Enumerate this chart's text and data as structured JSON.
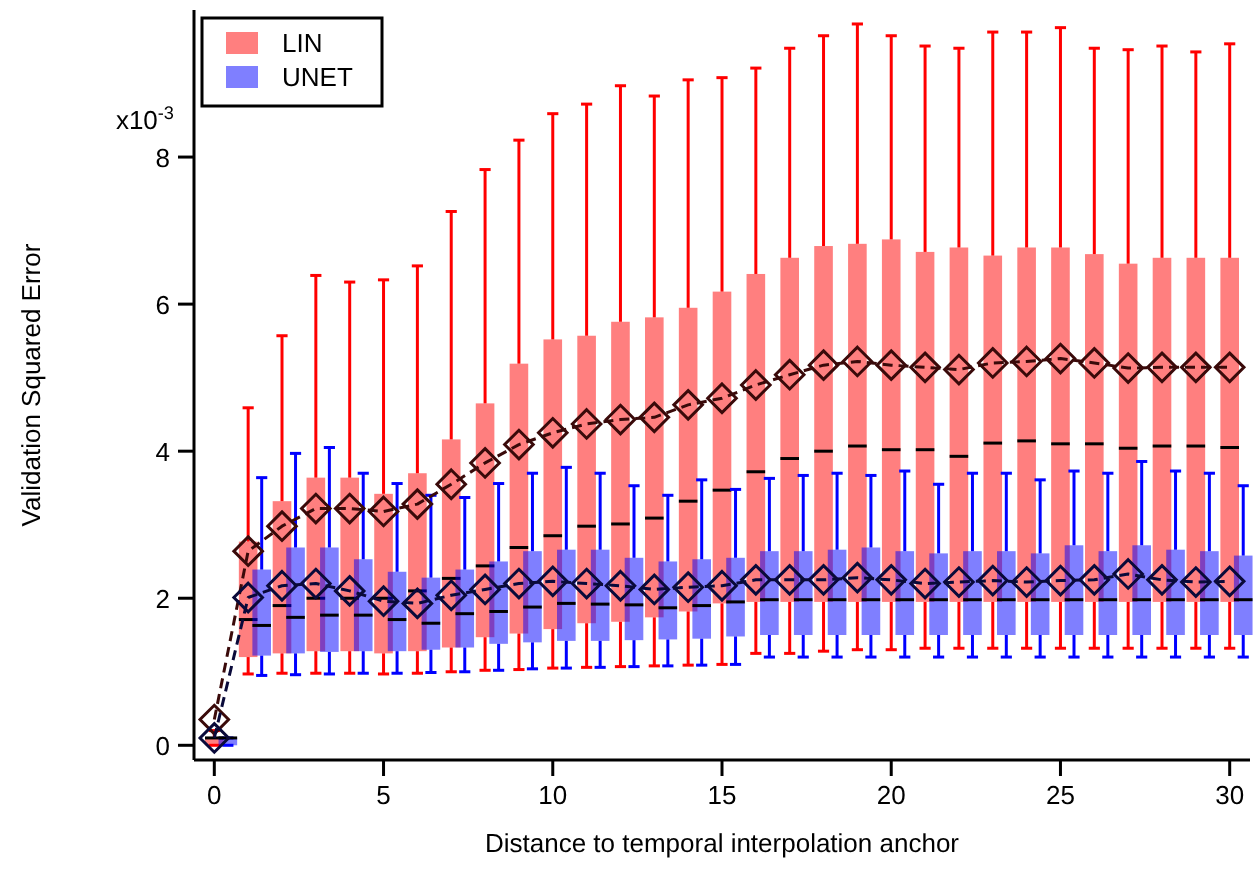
{
  "chart_data": {
    "type": "box",
    "xlabel": "Distance to temporal interpolation anchor",
    "ylabel": "Validation Squared Error",
    "xlim": [
      -0.6,
      30.6
    ],
    "xticks": [
      0,
      5,
      10,
      15,
      20,
      25,
      30
    ],
    "ylim": [
      -0.2,
      10.0
    ],
    "yticks": [
      0,
      2,
      4,
      6,
      8
    ],
    "annotations": [
      "x10$^{-3}$"
    ],
    "grid": false,
    "legend": "top left",
    "series": [
      {
        "name": "LIN",
        "color": "#ff0000",
        "x": [
          0,
          1,
          2,
          3,
          4,
          5,
          6,
          7,
          8,
          9,
          10,
          11,
          12,
          13,
          14,
          15,
          16,
          17,
          18,
          19,
          20,
          21,
          22,
          23,
          24,
          25,
          26,
          27,
          28,
          29,
          30
        ],
        "boxes": [
          {
            "low": 0,
            "q1": 0,
            "median": 0.1,
            "q3": 0.1,
            "high": 0.2
          },
          {
            "low": 0.97,
            "q1": 1.2,
            "median": 1.71,
            "q3": 2.77,
            "high": 4.59
          },
          {
            "low": 0.98,
            "q1": 1.25,
            "median": 1.9,
            "q3": 3.32,
            "high": 5.57
          },
          {
            "low": 0.98,
            "q1": 1.28,
            "median": 2.0,
            "q3": 3.64,
            "high": 6.39
          },
          {
            "low": 0.98,
            "q1": 1.28,
            "median": 2.0,
            "q3": 3.64,
            "high": 6.3
          },
          {
            "low": 0.97,
            "q1": 1.25,
            "median": 2.0,
            "q3": 3.42,
            "high": 6.33
          },
          {
            "low": 0.98,
            "q1": 1.28,
            "median": 2.1,
            "q3": 3.7,
            "high": 6.52
          },
          {
            "low": 1.0,
            "q1": 1.33,
            "median": 2.27,
            "q3": 4.16,
            "high": 7.26
          },
          {
            "low": 1.02,
            "q1": 1.47,
            "median": 2.44,
            "q3": 4.65,
            "high": 7.83
          },
          {
            "low": 1.03,
            "q1": 1.52,
            "median": 2.69,
            "q3": 5.19,
            "high": 8.23
          },
          {
            "low": 1.05,
            "q1": 1.58,
            "median": 2.85,
            "q3": 5.52,
            "high": 8.59
          },
          {
            "low": 1.06,
            "q1": 1.66,
            "median": 2.98,
            "q3": 5.57,
            "high": 8.72
          },
          {
            "low": 1.07,
            "q1": 1.68,
            "median": 3.01,
            "q3": 5.76,
            "high": 8.97
          },
          {
            "low": 1.08,
            "q1": 1.74,
            "median": 3.09,
            "q3": 5.82,
            "high": 8.83
          },
          {
            "low": 1.09,
            "q1": 1.82,
            "median": 3.32,
            "q3": 5.95,
            "high": 9.05
          },
          {
            "low": 1.1,
            "q1": 1.93,
            "median": 3.47,
            "q3": 6.17,
            "high": 9.08
          },
          {
            "low": 1.25,
            "q1": 1.95,
            "median": 3.72,
            "q3": 6.41,
            "high": 9.21
          },
          {
            "low": 1.25,
            "q1": 1.95,
            "median": 3.9,
            "q3": 6.63,
            "high": 9.48
          },
          {
            "low": 1.28,
            "q1": 1.95,
            "median": 4.0,
            "q3": 6.79,
            "high": 9.65
          },
          {
            "low": 1.3,
            "q1": 1.95,
            "median": 4.07,
            "q3": 6.82,
            "high": 9.81
          },
          {
            "low": 1.3,
            "q1": 1.95,
            "median": 4.02,
            "q3": 6.88,
            "high": 9.65
          },
          {
            "low": 1.32,
            "q1": 1.95,
            "median": 4.02,
            "q3": 6.71,
            "high": 9.51
          },
          {
            "low": 1.32,
            "q1": 1.95,
            "median": 3.93,
            "q3": 6.77,
            "high": 9.48
          },
          {
            "low": 1.32,
            "q1": 1.95,
            "median": 4.11,
            "q3": 6.66,
            "high": 9.7
          },
          {
            "low": 1.32,
            "q1": 1.95,
            "median": 4.14,
            "q3": 6.77,
            "high": 9.7
          },
          {
            "low": 1.32,
            "q1": 1.95,
            "median": 4.1,
            "q3": 6.77,
            "high": 9.76
          },
          {
            "low": 1.32,
            "q1": 1.95,
            "median": 4.1,
            "q3": 6.68,
            "high": 9.48
          },
          {
            "low": 1.32,
            "q1": 1.95,
            "median": 4.04,
            "q3": 6.55,
            "high": 9.46
          },
          {
            "low": 1.32,
            "q1": 1.95,
            "median": 4.07,
            "q3": 6.63,
            "high": 9.51
          },
          {
            "low": 1.32,
            "q1": 1.95,
            "median": 4.07,
            "q3": 6.63,
            "high": 9.43
          },
          {
            "low": 1.32,
            "q1": 1.95,
            "median": 4.05,
            "q3": 6.63,
            "high": 9.54
          }
        ]
      },
      {
        "name": "UNET",
        "color": "#0000ff",
        "x": [
          0,
          1,
          2,
          3,
          4,
          5,
          6,
          7,
          8,
          9,
          10,
          11,
          12,
          13,
          14,
          15,
          16,
          17,
          18,
          19,
          20,
          21,
          22,
          23,
          24,
          25,
          26,
          27,
          28,
          29,
          30
        ],
        "boxes": [
          {
            "low": 0,
            "q1": 0,
            "median": 0.1,
            "q3": 0.1,
            "high": 0.1
          },
          {
            "low": 0.95,
            "q1": 1.22,
            "median": 1.63,
            "q3": 2.39,
            "high": 3.64
          },
          {
            "low": 0.96,
            "q1": 1.25,
            "median": 1.74,
            "q3": 2.69,
            "high": 3.97
          },
          {
            "low": 0.97,
            "q1": 1.27,
            "median": 1.77,
            "q3": 2.69,
            "high": 4.05
          },
          {
            "low": 0.98,
            "q1": 1.28,
            "median": 1.77,
            "q3": 2.53,
            "high": 3.7
          },
          {
            "low": 0.98,
            "q1": 1.28,
            "median": 1.71,
            "q3": 2.36,
            "high": 3.56
          },
          {
            "low": 0.99,
            "q1": 1.3,
            "median": 1.66,
            "q3": 2.28,
            "high": 3.4
          },
          {
            "low": 1.0,
            "q1": 1.33,
            "median": 1.79,
            "q3": 2.39,
            "high": 3.37
          },
          {
            "low": 1.02,
            "q1": 1.38,
            "median": 1.82,
            "q3": 2.5,
            "high": 3.56
          },
          {
            "low": 1.04,
            "q1": 1.4,
            "median": 1.88,
            "q3": 2.64,
            "high": 3.7
          },
          {
            "low": 1.05,
            "q1": 1.42,
            "median": 1.93,
            "q3": 2.66,
            "high": 3.78
          },
          {
            "low": 1.06,
            "q1": 1.42,
            "median": 1.92,
            "q3": 2.66,
            "high": 3.7
          },
          {
            "low": 1.07,
            "q1": 1.43,
            "median": 1.91,
            "q3": 2.55,
            "high": 3.53
          },
          {
            "low": 1.08,
            "q1": 1.44,
            "median": 1.87,
            "q3": 2.5,
            "high": 3.4
          },
          {
            "low": 1.09,
            "q1": 1.45,
            "median": 1.9,
            "q3": 2.53,
            "high": 3.61
          },
          {
            "low": 1.1,
            "q1": 1.48,
            "median": 1.95,
            "q3": 2.55,
            "high": 3.48
          },
          {
            "low": 1.2,
            "q1": 1.5,
            "median": 1.98,
            "q3": 2.64,
            "high": 3.63
          },
          {
            "low": 1.2,
            "q1": 1.5,
            "median": 1.98,
            "q3": 2.64,
            "high": 3.67
          },
          {
            "low": 1.2,
            "q1": 1.5,
            "median": 1.98,
            "q3": 2.66,
            "high": 3.7
          },
          {
            "low": 1.2,
            "q1": 1.5,
            "median": 1.98,
            "q3": 2.69,
            "high": 3.67
          },
          {
            "low": 1.2,
            "q1": 1.5,
            "median": 1.98,
            "q3": 2.64,
            "high": 3.73
          },
          {
            "low": 1.2,
            "q1": 1.5,
            "median": 1.98,
            "q3": 2.61,
            "high": 3.55
          },
          {
            "low": 1.2,
            "q1": 1.5,
            "median": 1.98,
            "q3": 2.64,
            "high": 3.7
          },
          {
            "low": 1.2,
            "q1": 1.5,
            "median": 1.98,
            "q3": 2.64,
            "high": 3.7
          },
          {
            "low": 1.2,
            "q1": 1.5,
            "median": 1.98,
            "q3": 2.61,
            "high": 3.61
          },
          {
            "low": 1.2,
            "q1": 1.5,
            "median": 1.98,
            "q3": 2.72,
            "high": 3.73
          },
          {
            "low": 1.2,
            "q1": 1.5,
            "median": 1.98,
            "q3": 2.64,
            "high": 3.7
          },
          {
            "low": 1.2,
            "q1": 1.5,
            "median": 1.98,
            "q3": 2.72,
            "high": 3.86
          },
          {
            "low": 1.2,
            "q1": 1.5,
            "median": 1.98,
            "q3": 2.66,
            "high": 3.73
          },
          {
            "low": 1.2,
            "q1": 1.5,
            "median": 1.98,
            "q3": 2.64,
            "high": 3.7
          },
          {
            "low": 1.2,
            "q1": 1.5,
            "median": 1.98,
            "q3": 2.58,
            "high": 3.53
          }
        ]
      },
      {
        "type": "line",
        "color": "#3a0a0a",
        "marker": "diamond",
        "line_style": "dashed",
        "x": [
          0,
          1,
          2,
          3,
          4,
          5,
          6,
          7,
          8,
          9,
          10,
          11,
          12,
          13,
          14,
          15,
          16,
          17,
          18,
          19,
          20,
          21,
          22,
          23,
          24,
          25,
          26,
          27,
          28,
          29,
          30
        ],
        "values": [
          0.35,
          2.64,
          2.98,
          3.22,
          3.22,
          3.18,
          3.28,
          3.55,
          3.84,
          4.09,
          4.25,
          4.37,
          4.43,
          4.46,
          4.63,
          4.72,
          4.9,
          5.04,
          5.17,
          5.22,
          5.17,
          5.14,
          5.11,
          5.2,
          5.22,
          5.26,
          5.2,
          5.13,
          5.14,
          5.14,
          5.14
        ]
      },
      {
        "type": "line",
        "color": "#0a0a3a",
        "marker": "diamond",
        "line_style": "dashed",
        "x": [
          0,
          1,
          2,
          3,
          4,
          5,
          6,
          7,
          8,
          9,
          10,
          11,
          12,
          13,
          14,
          15,
          16,
          17,
          18,
          19,
          20,
          21,
          22,
          23,
          24,
          25,
          26,
          27,
          28,
          29,
          30
        ],
        "values": [
          0.1,
          2.01,
          2.17,
          2.2,
          2.1,
          1.96,
          1.93,
          2.04,
          2.12,
          2.2,
          2.23,
          2.2,
          2.17,
          2.12,
          2.15,
          2.17,
          2.25,
          2.25,
          2.25,
          2.28,
          2.25,
          2.2,
          2.22,
          2.24,
          2.22,
          2.24,
          2.25,
          2.33,
          2.25,
          2.22,
          2.23
        ]
      }
    ]
  }
}
